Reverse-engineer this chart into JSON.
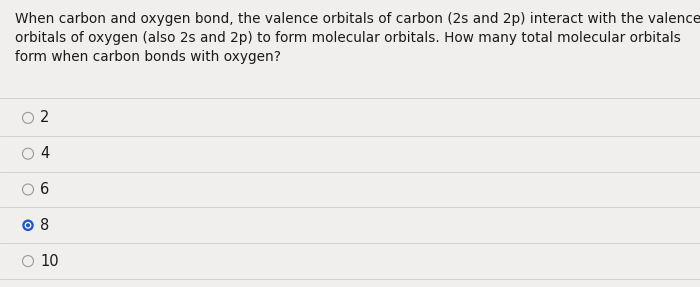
{
  "question_text": "When carbon and oxygen bond, the valence orbitals of carbon (2s and 2p) interact with the valence\norbitals of oxygen (also 2s and 2p) to form molecular orbitals. How many total molecular orbitals\nform when carbon bonds with oxygen?",
  "options": [
    "2",
    "4",
    "6",
    "8",
    "10"
  ],
  "selected_index": 3,
  "bg_color": "#f0efed",
  "text_color": "#1a1a1a",
  "divider_color": "#c8c8c8",
  "selected_fill": "#2255cc",
  "selected_border": "#2255cc",
  "unselected_fill": "#f0efed",
  "unselected_border": "#999999",
  "question_fontsize": 9.8,
  "option_fontsize": 10.5,
  "fig_width": 7.0,
  "fig_height": 2.87,
  "dpi": 100
}
